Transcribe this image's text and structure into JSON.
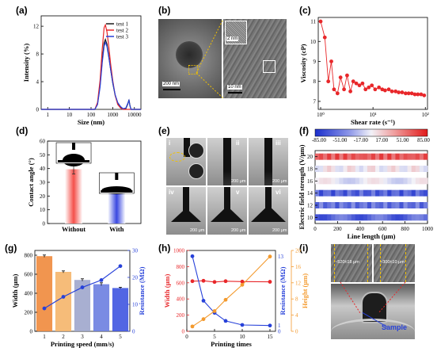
{
  "panel_labels": [
    "(a)",
    "(b)",
    "(c)",
    "(d)",
    "(e)",
    "(f)",
    "(g)",
    "(h)",
    "(i)"
  ],
  "panel_b": {
    "scale_main": "200 nm",
    "scale_inset_top": "2 nm",
    "scale_inset_bottom": "10 nm"
  },
  "panel_e": {
    "frames": [
      "i",
      "ii",
      "iii",
      "iv",
      "v",
      "vi"
    ],
    "scale": "200 μm"
  },
  "panel_i": {
    "width_label_1": "~520±18 μm",
    "width_label_2": "~300±10 μm",
    "sample_label": "Sample"
  },
  "colors": {
    "red": "#e8272a",
    "blue": "#2741d9",
    "black": "#1a1a1a",
    "orange": "#f39a2e",
    "bar_red": "#f4504a",
    "bar_blue": "#3a48e0"
  },
  "chart_data": [
    {
      "panel": "(a)",
      "type": "line",
      "xlabel": "Size (nm)",
      "ylabel": "Intensity (%)",
      "xscale": "log",
      "xlim": [
        0.5,
        20000
      ],
      "ylim": [
        0,
        13.5
      ],
      "xticks": [
        "1",
        "10",
        "100",
        "1000",
        "10000"
      ],
      "yticks": [
        "0",
        "4",
        "8",
        "12"
      ],
      "legend": [
        "test 1",
        "test 2",
        "test 3"
      ],
      "legend_position": "top-right",
      "series": [
        {
          "name": "test 1",
          "color": "#1a1a1a",
          "x": [
            0.5,
            150,
            200,
            260,
            330,
            400,
            460,
            540,
            650,
            800,
            1000,
            1300,
            1700,
            2300,
            3000,
            4000,
            5000,
            5600,
            6200,
            7000,
            20000
          ],
          "y": [
            0,
            0,
            0.8,
            3.5,
            7.2,
            9.6,
            10.1,
            9.4,
            7.8,
            5.8,
            3.8,
            2.0,
            0.9,
            0.3,
            0.1,
            0.1,
            0.8,
            1.4,
            0.6,
            0,
            0
          ]
        },
        {
          "name": "test 2",
          "color": "#e8272a",
          "x": [
            0.5,
            150,
            200,
            260,
            330,
            400,
            460,
            540,
            650,
            800,
            1000,
            1300,
            1700,
            2300,
            3000,
            4000,
            5000,
            5600,
            6200,
            7000,
            20000
          ],
          "y": [
            0,
            0,
            1.0,
            4.2,
            8.8,
            11.8,
            12.2,
            11.2,
            9.2,
            6.6,
            4.2,
            2.0,
            0.7,
            0.2,
            0,
            0,
            0,
            0,
            0,
            0,
            0
          ]
        },
        {
          "name": "test 3",
          "color": "#2741d9",
          "x": [
            0.5,
            150,
            200,
            260,
            330,
            400,
            460,
            540,
            650,
            800,
            1000,
            1300,
            1700,
            2300,
            3000,
            4000,
            5000,
            5600,
            6200,
            7000,
            20000
          ],
          "y": [
            0,
            0,
            0.7,
            3.2,
            6.8,
            9.1,
            9.7,
            9.1,
            7.6,
            5.8,
            3.9,
            2.1,
            1.0,
            0.4,
            0.1,
            0.2,
            0.9,
            1.3,
            0.5,
            0,
            0
          ]
        }
      ]
    },
    {
      "panel": "(c)",
      "type": "scatter",
      "xlabel": "Shear rate (s⁻¹)",
      "ylabel": "Viscosity (cP)",
      "xscale": "log",
      "xlim": [
        0.9,
        110
      ],
      "ylim": [
        6.6,
        11.2
      ],
      "xticks": [
        "10⁰",
        "10¹",
        "10²"
      ],
      "yticks": [
        "7",
        "8",
        "9",
        "10",
        "11"
      ],
      "series": [
        {
          "name": "",
          "color": "#e8272a",
          "x": [
            1.0,
            1.2,
            1.4,
            1.6,
            1.8,
            2.1,
            2.4,
            2.8,
            3.2,
            3.7,
            4.2,
            4.8,
            5.5,
            6.3,
            7.2,
            8.3,
            9.5,
            11,
            13,
            15,
            17,
            20,
            23,
            27,
            31,
            36,
            42,
            48,
            55,
            63,
            72,
            83,
            95
          ],
          "y": [
            11.0,
            10.2,
            8.0,
            9.0,
            7.6,
            7.4,
            8.2,
            7.6,
            8.3,
            7.5,
            8.0,
            7.9,
            7.8,
            7.9,
            7.6,
            7.7,
            7.8,
            7.6,
            7.7,
            7.6,
            7.55,
            7.6,
            7.5,
            7.5,
            7.45,
            7.45,
            7.4,
            7.4,
            7.4,
            7.35,
            7.35,
            7.35,
            7.3
          ]
        }
      ]
    },
    {
      "panel": "(d)",
      "type": "bar",
      "ylabel": "Contact angle (°)",
      "ylim": [
        0,
        60
      ],
      "yticks": [
        "0",
        "10",
        "20",
        "30",
        "40",
        "50",
        "60"
      ],
      "categories": [
        "Without",
        "With"
      ],
      "values": [
        39.5,
        24.5
      ],
      "errors": [
        3.5,
        1.5
      ],
      "colors": [
        "#f4504a",
        "#3a48e0"
      ]
    },
    {
      "panel": "(f)",
      "type": "heatmap",
      "xlabel": "Line length (μm)",
      "ylabel": "Electric field strength (V/μm)",
      "xlim": [
        0,
        1000
      ],
      "xticks": [
        "0",
        "200",
        "400",
        "600",
        "800",
        "1000"
      ],
      "yticks": [
        "10",
        "12",
        "14",
        "16",
        "18",
        "20"
      ],
      "colorbar_ticks": [
        "-85.00",
        "-51.00",
        "-17.00",
        "17.00",
        "51.00",
        "85.00"
      ],
      "rows": [
        {
          "y": 20,
          "mean": 60
        },
        {
          "y": 18,
          "mean": 2
        },
        {
          "y": 16,
          "mean": -5
        },
        {
          "y": 14,
          "mean": -62
        },
        {
          "y": 12,
          "mean": -55
        },
        {
          "y": 10,
          "mean": -60
        }
      ]
    },
    {
      "panel": "(g)",
      "type": "bar",
      "xlabel": "Printing speed (mm/s)",
      "ylabel": "Width (μm)",
      "ylabel_right": "Resistance (MΩ)",
      "categories": [
        "1",
        "2",
        "3",
        "4",
        "5"
      ],
      "values": [
        790,
        625,
        540,
        495,
        455
      ],
      "errors": [
        12,
        10,
        12,
        15,
        8
      ],
      "ylim": [
        0,
        850
      ],
      "yticks": [
        "0",
        "200",
        "400",
        "600",
        "800"
      ],
      "y2lim": [
        0,
        30
      ],
      "y2ticks": [
        "0",
        "10",
        "20",
        "30"
      ],
      "bar_colors": [
        "#f08a3c",
        "#f5b56a",
        "#9fa6cc",
        "#6b7ee0",
        "#3f55e0"
      ],
      "line_series": {
        "name": "",
        "color": "#2741d9",
        "values": [
          8.5,
          12.8,
          16.3,
          19.0,
          24.2
        ]
      }
    },
    {
      "panel": "(h)",
      "type": "line",
      "xlabel": "Printing times",
      "ylabel": "Width (μm)",
      "ylabel_right_inner": "Resistance (MΩ)",
      "ylabel_right_outer": "Height (μm)",
      "xlim": [
        0,
        16
      ],
      "xticks": [
        "0",
        "5",
        "10",
        "15"
      ],
      "ylim": [
        0,
        1000
      ],
      "yticks": [
        "0",
        "200",
        "400",
        "600",
        "800",
        "1000"
      ],
      "y2lim": [
        0,
        14
      ],
      "y2ticks": [
        "0",
        "1",
        "13"
      ],
      "y3lim": [
        0,
        20
      ],
      "y3ticks": [
        "0",
        "4",
        "8",
        "12",
        "16",
        "20"
      ],
      "series": [
        {
          "name": "",
          "axis": "left",
          "color": "#e8272a",
          "x": [
            1,
            3,
            5,
            7,
            10,
            15
          ],
          "y": [
            620,
            625,
            610,
            620,
            615,
            612
          ]
        },
        {
          "name": "",
          "axis": "right-inner",
          "color": "#2741d9",
          "x": [
            1,
            3,
            5,
            7,
            10,
            15
          ],
          "y": [
            13,
            5.3,
            3.2,
            1.8,
            1.1,
            1.0
          ]
        },
        {
          "name": "",
          "axis": "right-outer",
          "color": "#f39a2e",
          "x": [
            1,
            3,
            5,
            7,
            10,
            15
          ],
          "y": [
            1.2,
            3.0,
            5.0,
            7.8,
            11.5,
            18.5
          ]
        }
      ]
    }
  ]
}
